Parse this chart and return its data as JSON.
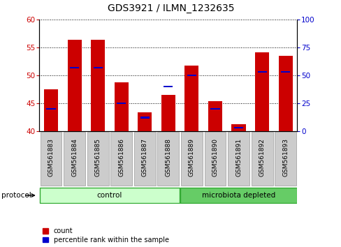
{
  "title": "GDS3921 / ILMN_1232635",
  "samples": [
    "GSM561883",
    "GSM561884",
    "GSM561885",
    "GSM561886",
    "GSM561887",
    "GSM561888",
    "GSM561889",
    "GSM561890",
    "GSM561891",
    "GSM561892",
    "GSM561893"
  ],
  "count_values": [
    47.5,
    56.4,
    56.4,
    48.8,
    43.3,
    46.5,
    51.8,
    45.4,
    41.2,
    54.1,
    53.5
  ],
  "percentile_values": [
    20,
    57,
    57,
    25,
    12,
    40,
    50,
    20,
    3,
    53,
    53
  ],
  "ymin": 40,
  "ymax": 60,
  "yticks_left": [
    40,
    45,
    50,
    55,
    60
  ],
  "yticks_right": [
    0,
    25,
    50,
    75,
    100
  ],
  "bar_color": "#cc0000",
  "percentile_color": "#0000cc",
  "bar_width": 0.6,
  "n_control": 6,
  "n_micro": 5,
  "control_color": "#ccffcc",
  "microbiota_color": "#66cc66",
  "left_tick_color": "#cc0000",
  "right_tick_color": "#0000cc",
  "grid_color": "#000000",
  "tick_bg_color": "#cccccc",
  "fig_bg_color": "#ffffff",
  "title_fontsize": 10,
  "tick_fontsize": 7.5,
  "label_fontsize": 6.5,
  "proto_fontsize": 7.5,
  "legend_fontsize": 7
}
